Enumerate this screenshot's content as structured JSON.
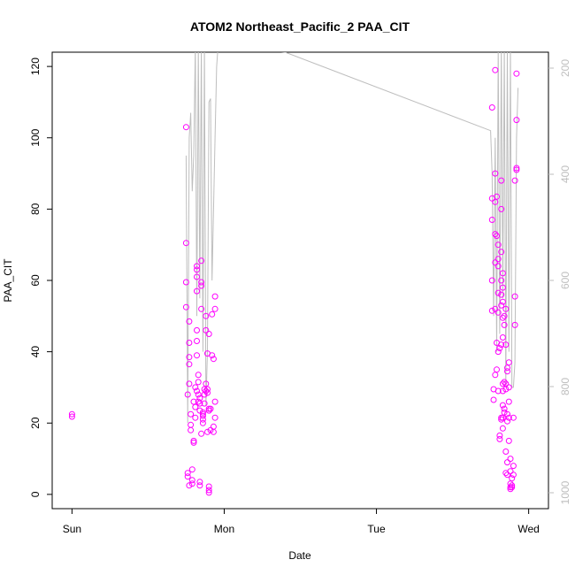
{
  "chart_data": {
    "type": "scatter",
    "title": "ATOM2 Northeast_Pacific_2 PAA_CIT",
    "xlabel": "Date",
    "ylabel": "PAA_CIT",
    "x_unit": "days since Sun 00:00",
    "xlim": [
      -0.13,
      3.13
    ],
    "ylim": [
      -4,
      124
    ],
    "x_ticks": [
      {
        "value": 0,
        "label": "Sun"
      },
      {
        "value": 1,
        "label": "Mon"
      },
      {
        "value": 2,
        "label": "Tue"
      },
      {
        "value": 3,
        "label": "Wed"
      }
    ],
    "y_ticks": [
      0,
      20,
      40,
      60,
      80,
      100,
      120
    ],
    "y2_ticks": [
      200,
      400,
      600,
      800,
      1000
    ],
    "y2lim": [
      1030,
      170
    ],
    "grid": false,
    "legend": "none",
    "colors": {
      "points": "#ff00ff",
      "line": "#bebebe",
      "axis": "#000000",
      "axis2": "#bebebe"
    },
    "series": [
      {
        "type": "scatter",
        "points": [
          [
            0.0,
            22.5
          ],
          [
            0.0,
            21.8
          ],
          [
            0.75,
            103
          ],
          [
            0.75,
            70.5
          ],
          [
            0.75,
            59.5
          ],
          [
            0.75,
            52.5
          ],
          [
            0.76,
            6
          ],
          [
            0.76,
            5
          ],
          [
            0.76,
            28
          ],
          [
            0.77,
            48.5
          ],
          [
            0.77,
            42.5
          ],
          [
            0.77,
            38.5
          ],
          [
            0.77,
            36.5
          ],
          [
            0.77,
            31
          ],
          [
            0.77,
            2.5
          ],
          [
            0.78,
            18
          ],
          [
            0.78,
            19.5
          ],
          [
            0.78,
            22.5
          ],
          [
            0.79,
            7
          ],
          [
            0.79,
            4
          ],
          [
            0.79,
            3
          ],
          [
            0.8,
            15
          ],
          [
            0.8,
            14.5
          ],
          [
            0.8,
            26
          ],
          [
            0.81,
            21.5
          ],
          [
            0.81,
            24.5
          ],
          [
            0.81,
            30
          ],
          [
            0.82,
            29
          ],
          [
            0.82,
            64
          ],
          [
            0.82,
            63
          ],
          [
            0.82,
            61
          ],
          [
            0.82,
            57
          ],
          [
            0.82,
            46
          ],
          [
            0.82,
            43
          ],
          [
            0.82,
            39
          ],
          [
            0.83,
            33.5
          ],
          [
            0.83,
            31.5
          ],
          [
            0.83,
            28
          ],
          [
            0.83,
            26
          ],
          [
            0.84,
            27
          ],
          [
            0.84,
            25.5
          ],
          [
            0.84,
            23.5
          ],
          [
            0.84,
            2.5
          ],
          [
            0.84,
            3.5
          ],
          [
            0.85,
            65.5
          ],
          [
            0.85,
            59.5
          ],
          [
            0.85,
            58.5
          ],
          [
            0.85,
            52
          ],
          [
            0.85,
            17
          ],
          [
            0.86,
            22
          ],
          [
            0.86,
            21
          ],
          [
            0.86,
            20
          ],
          [
            0.86,
            23
          ],
          [
            0.86,
            22.5
          ],
          [
            0.87,
            28
          ],
          [
            0.87,
            29.5
          ],
          [
            0.87,
            25.5
          ],
          [
            0.88,
            31
          ],
          [
            0.88,
            29
          ],
          [
            0.88,
            50
          ],
          [
            0.88,
            46
          ],
          [
            0.89,
            17.5
          ],
          [
            0.89,
            29.5
          ],
          [
            0.89,
            28.5
          ],
          [
            0.89,
            39.5
          ],
          [
            0.9,
            45
          ],
          [
            0.9,
            23.5
          ],
          [
            0.9,
            24
          ],
          [
            0.9,
            2.2
          ],
          [
            0.9,
            1.2
          ],
          [
            0.9,
            0.5
          ],
          [
            0.91,
            18
          ],
          [
            0.91,
            24
          ],
          [
            0.92,
            39
          ],
          [
            0.92,
            50.5
          ],
          [
            0.93,
            38
          ],
          [
            0.93,
            17.5
          ],
          [
            0.93,
            19
          ],
          [
            0.94,
            55.5
          ],
          [
            0.94,
            52
          ],
          [
            0.94,
            26
          ],
          [
            0.94,
            21.5
          ],
          [
            2.76,
            108.5
          ],
          [
            2.76,
            83
          ],
          [
            2.76,
            77
          ],
          [
            2.76,
            60
          ],
          [
            2.76,
            51.5
          ],
          [
            2.77,
            29.5
          ],
          [
            2.77,
            26.5
          ],
          [
            2.78,
            119
          ],
          [
            2.78,
            90
          ],
          [
            2.78,
            82
          ],
          [
            2.78,
            73
          ],
          [
            2.78,
            65
          ],
          [
            2.78,
            52
          ],
          [
            2.78,
            33.5
          ],
          [
            2.79,
            83.5
          ],
          [
            2.79,
            72.5
          ],
          [
            2.79,
            42.5
          ],
          [
            2.79,
            35
          ],
          [
            2.8,
            70
          ],
          [
            2.8,
            66
          ],
          [
            2.8,
            64
          ],
          [
            2.8,
            56.5
          ],
          [
            2.8,
            51
          ],
          [
            2.8,
            40
          ],
          [
            2.8,
            29
          ],
          [
            2.81,
            16.5
          ],
          [
            2.81,
            15.5
          ],
          [
            2.81,
            41
          ],
          [
            2.82,
            88
          ],
          [
            2.82,
            80
          ],
          [
            2.82,
            68
          ],
          [
            2.82,
            60
          ],
          [
            2.82,
            56
          ],
          [
            2.82,
            53
          ],
          [
            2.82,
            42
          ],
          [
            2.82,
            21.5
          ],
          [
            2.82,
            21
          ],
          [
            2.83,
            62
          ],
          [
            2.83,
            58
          ],
          [
            2.83,
            54
          ],
          [
            2.83,
            49.5
          ],
          [
            2.83,
            44
          ],
          [
            2.83,
            31
          ],
          [
            2.83,
            29
          ],
          [
            2.83,
            25
          ],
          [
            2.83,
            21.5
          ],
          [
            2.83,
            18.5
          ],
          [
            2.84,
            50
          ],
          [
            2.84,
            47.5
          ],
          [
            2.84,
            31.5
          ],
          [
            2.84,
            24
          ],
          [
            2.84,
            23
          ],
          [
            2.85,
            52
          ],
          [
            2.85,
            42
          ],
          [
            2.85,
            31
          ],
          [
            2.85,
            29.5
          ],
          [
            2.85,
            12
          ],
          [
            2.85,
            6
          ],
          [
            2.86,
            35.5
          ],
          [
            2.86,
            34.5
          ],
          [
            2.86,
            22.5
          ],
          [
            2.86,
            20.5
          ],
          [
            2.86,
            9
          ],
          [
            2.86,
            5.5
          ],
          [
            2.87,
            37
          ],
          [
            2.87,
            30
          ],
          [
            2.87,
            26
          ],
          [
            2.87,
            21.5
          ],
          [
            2.87,
            15
          ],
          [
            2.88,
            10
          ],
          [
            2.88,
            6.5
          ],
          [
            2.88,
            3
          ],
          [
            2.88,
            2
          ],
          [
            2.88,
            1.5
          ],
          [
            2.89,
            2.5
          ],
          [
            2.89,
            4.5
          ],
          [
            2.89,
            2
          ],
          [
            2.9,
            8
          ],
          [
            2.9,
            5.5
          ],
          [
            2.9,
            21.5
          ],
          [
            2.91,
            55.5
          ],
          [
            2.91,
            47.5
          ],
          [
            2.91,
            88
          ],
          [
            2.92,
            118
          ],
          [
            2.92,
            105
          ],
          [
            2.92,
            91.5
          ],
          [
            2.92,
            91
          ]
        ]
      },
      {
        "type": "line",
        "points": [
          [
            0.75,
            95
          ],
          [
            0.76,
            20
          ],
          [
            0.77,
            100
          ],
          [
            0.78,
            107
          ],
          [
            0.79,
            85
          ],
          [
            0.8,
            95
          ],
          [
            0.81,
            126
          ],
          [
            0.82,
            50
          ],
          [
            0.83,
            126
          ],
          [
            0.84,
            55
          ],
          [
            0.85,
            126
          ],
          [
            0.86,
            40
          ],
          [
            0.87,
            126
          ],
          [
            0.88,
            25
          ],
          [
            0.89,
            40
          ],
          [
            0.9,
            110
          ],
          [
            0.91,
            111
          ],
          [
            0.92,
            60
          ],
          [
            0.93,
            80
          ],
          [
            0.94,
            100
          ],
          [
            0.95,
            120
          ],
          [
            0.96,
            126
          ],
          [
            1.4,
            124
          ],
          [
            2.75,
            102
          ],
          [
            2.76,
            90
          ],
          [
            2.77,
            50
          ],
          [
            2.78,
            100
          ],
          [
            2.79,
            40
          ],
          [
            2.8,
            126
          ],
          [
            2.81,
            45
          ],
          [
            2.82,
            126
          ],
          [
            2.83,
            55
          ],
          [
            2.84,
            126
          ],
          [
            2.85,
            30
          ],
          [
            2.86,
            126
          ],
          [
            2.87,
            40
          ],
          [
            2.88,
            126
          ],
          [
            2.89,
            30
          ],
          [
            2.9,
            30
          ],
          [
            2.91,
            37
          ],
          [
            2.92,
            100
          ],
          [
            2.93,
            114
          ]
        ]
      }
    ]
  }
}
